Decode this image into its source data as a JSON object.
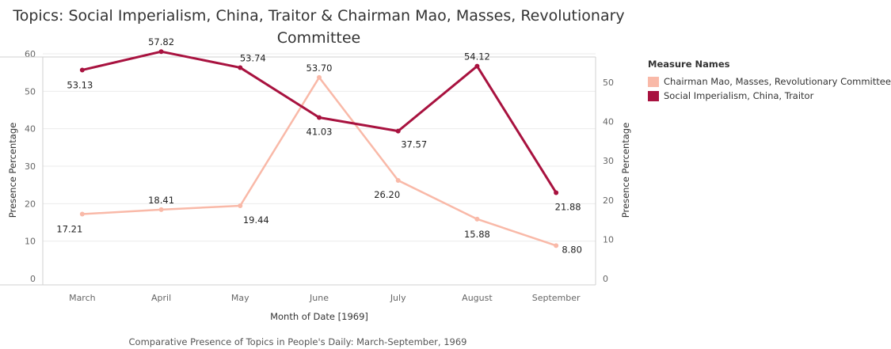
{
  "chart_data": {
    "type": "line",
    "title": "Topics:  Social Imperialism, China, Traitor & Chairman Mao, Masses, Revolutionary Committee",
    "xlabel": "Month of Date [1969]",
    "ylabel_left": "Presence Percentage",
    "ylabel_right": "Presence Percentage",
    "categories": [
      "March",
      "April",
      "May",
      "June",
      "July",
      "August",
      "September"
    ],
    "left_axis": {
      "min": 0,
      "max": 60,
      "ticks": [
        0,
        10,
        20,
        30,
        40,
        50,
        60
      ]
    },
    "right_axis": {
      "min": 0,
      "max": 55,
      "ticks": [
        0,
        10,
        20,
        30,
        40,
        50
      ]
    },
    "series": [
      {
        "name": "Chairman Mao, Masses, Revolutionary Committee",
        "axis": "left",
        "color": "#f9b9a8",
        "values": [
          17.21,
          18.41,
          19.44,
          53.7,
          26.2,
          15.88,
          8.8
        ],
        "labels": [
          "17.21",
          "18.41",
          "19.44",
          "53.70",
          "26.20",
          "15.88",
          "8.80"
        ]
      },
      {
        "name": "Social Imperialism, China, Traitor",
        "axis": "right",
        "color": "#a8123f",
        "values": [
          53.13,
          57.82,
          53.74,
          41.03,
          37.57,
          54.12,
          21.88
        ],
        "labels": [
          "53.13",
          "57.82",
          "53.74",
          "41.03",
          "37.57",
          "54.12",
          "21.88"
        ]
      }
    ],
    "grid": true,
    "legend_title": "Measure Names",
    "legend_position": "right"
  },
  "caption": "Comparative Presence of Topics in People's Daily: March-September, 1969"
}
